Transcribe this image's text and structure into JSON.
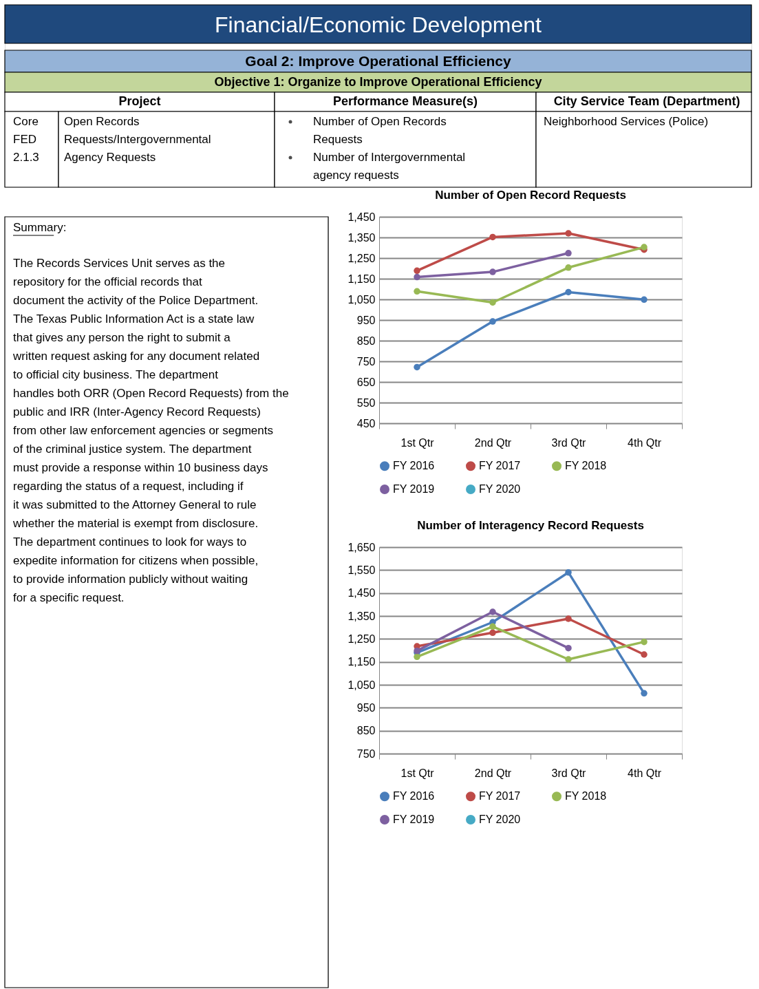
{
  "chart_data": [
    {
      "type": "other",
      "title": "Financial/Economic Development",
      "annotations": [
        "Goal 2: Improve Operational Efficiency",
        "Objective 1: Organize to Improve Operational Efficiency",
        "Project",
        "Performance Measure(s)",
        "City Service Team (Department)",
        "Core FED 2.1.3",
        "Open Records Requests/Intergovernmental Agency Requests",
        "Number of Open Records Requests",
        "Number of Intergovernmental agency requests",
        "Neighborhood Services (Police)"
      ]
    },
    {
      "type": "other",
      "annotations": [
        "Summary:",
        "The Records Services Unit serves as the repository for the official records that document the activity of the Police Department.  The Texas Public Information Act is a state law that gives any person the right to submit a written request asking for any document related to official city business.  The department handles both ORR (Open Record Requests) from the public and IRR (Inter-Agency Record Requests) from other law enforcement agencies or segments of the criminal justice system.  The department must provide a response within 10 business days regarding the status of a request, including if it was submitted to the Attorney General to rule whether the material is exempt from disclosure.  The department continues to look for ways to expedite information for citizens when possible, to provide information publicly without waiting for a specific request."
      ]
    },
    {
      "type": "line",
      "title": "Number of Open Record Requests",
      "categories": [
        "1st Qtr",
        "2nd Qtr",
        "3rd Qtr",
        "4th Qtr"
      ],
      "ylim": [
        450,
        1450
      ],
      "yticks": [
        450,
        550,
        650,
        750,
        850,
        950,
        {
          "value": 1050,
          "label": "1,050"
        },
        {
          "value": 1150,
          "label": "1,150"
        },
        {
          "value": 1250,
          "label": "1,250"
        },
        {
          "value": 1350,
          "label": "1,350"
        },
        {
          "value": 1450,
          "label": "1,450"
        }
      ],
      "grid": "y",
      "legend": "bottom",
      "marker": "circle",
      "line_style": "solid",
      "series": [
        {
          "name": "FY 2016",
          "color": "#4a7ebb",
          "values": [
            722,
            943,
            1085,
            1049
          ]
        },
        {
          "name": "FY 2017",
          "color": "#be4b48",
          "values": [
            1189,
            1352,
            1370,
            1291
          ]
        },
        {
          "name": "FY 2018",
          "color": "#98b954",
          "values": [
            1089,
            1035,
            1204,
            1303
          ]
        },
        {
          "name": "FY 2019",
          "color": "#7d60a0",
          "values": [
            1158,
            1183,
            1274,
            null
          ]
        },
        {
          "name": "FY 2020",
          "color": "#46aac5",
          "values": [
            null,
            null,
            null,
            null
          ]
        }
      ]
    },
    {
      "type": "line",
      "title": "Number of Interagency Record Requests",
      "categories": [
        "1st Qtr",
        "2nd Qtr",
        "3rd Qtr",
        "4th Qtr"
      ],
      "ylim": [
        750,
        1650
      ],
      "yticks": [
        750,
        850,
        950,
        {
          "value": 1050,
          "label": "1,050"
        },
        {
          "value": 1150,
          "label": "1,150"
        },
        {
          "value": 1250,
          "label": "1,250"
        },
        {
          "value": 1350,
          "label": "1,350"
        },
        {
          "value": 1450,
          "label": "1,450"
        },
        {
          "value": 1550,
          "label": "1,550"
        },
        {
          "value": 1650,
          "label": "1,650"
        }
      ],
      "grid": "y",
      "legend": "bottom",
      "marker": "circle",
      "line_style": "solid",
      "series": [
        {
          "name": "FY 2016",
          "color": "#4a7ebb",
          "values": [
            1190,
            1323,
            1540,
            1013
          ]
        },
        {
          "name": "FY 2017",
          "color": "#be4b48",
          "values": [
            1218,
            1277,
            1338,
            1182
          ]
        },
        {
          "name": "FY 2018",
          "color": "#98b954",
          "values": [
            1172,
            1304,
            1161,
            1237
          ]
        },
        {
          "name": "FY 2019",
          "color": "#7d60a0",
          "values": [
            1198,
            1368,
            1210,
            null
          ]
        },
        {
          "name": "FY 2020",
          "color": "#46aac5",
          "values": [
            null,
            null,
            null,
            null
          ]
        }
      ]
    }
  ]
}
